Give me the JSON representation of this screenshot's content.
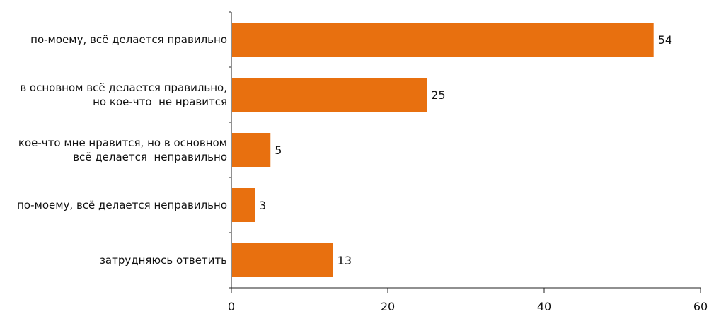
{
  "chart_data": {
    "type": "bar",
    "orientation": "horizontal",
    "categories": [
      [
        "по-моему, всё делается правильно"
      ],
      [
        "в основном всё делается правильно,",
        "но кое-что  не нравится"
      ],
      [
        "кое-что мне нравится, но в основном",
        "всё делается  неправильно"
      ],
      [
        "по-моему, всё делается неправильно"
      ],
      [
        "затрудняюсь ответить"
      ]
    ],
    "values": [
      54,
      25,
      5,
      3,
      13
    ],
    "value_labels": [
      "54",
      "25",
      "5",
      "3",
      "13"
    ],
    "xlim": [
      0,
      60
    ],
    "xticks": [
      0,
      20,
      40,
      60
    ],
    "xtick_labels": [
      "0",
      "20",
      "40",
      "60"
    ],
    "title": "",
    "xlabel": "",
    "ylabel": "",
    "grid": false,
    "legend": "none",
    "colors": {
      "bar": "#E8700F",
      "axis": "#222222",
      "text": "#111111"
    }
  }
}
